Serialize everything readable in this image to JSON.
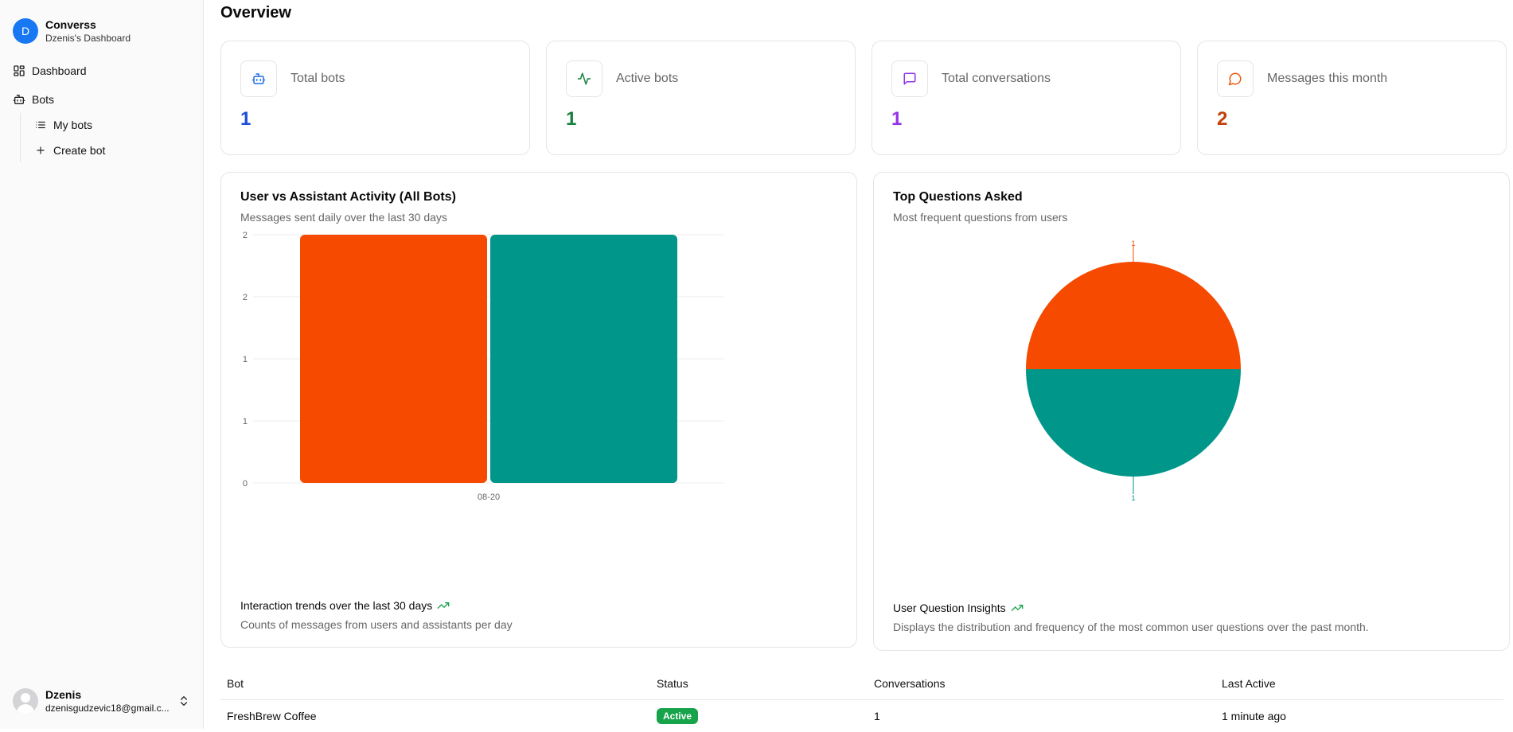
{
  "sidebar": {
    "brand_initial": "D",
    "brand_name": "Converss",
    "brand_sub": "Dzenis's Dashboard",
    "nav": {
      "dashboard": "Dashboard",
      "bots": "Bots",
      "my_bots": "My bots",
      "create_bot": "Create bot"
    },
    "user": {
      "name": "Dzenis",
      "email": "dzenisgudzevic18@gmail.c..."
    }
  },
  "page_title": "Overview",
  "stats": [
    {
      "label": "Total bots",
      "value": "1",
      "icon": "bot-icon",
      "color": "#1d4ed8"
    },
    {
      "label": "Active bots",
      "value": "1",
      "icon": "activity-icon",
      "color": "#15803d"
    },
    {
      "label": "Total conversations",
      "value": "1",
      "icon": "message-square-icon",
      "color": "#9333ea"
    },
    {
      "label": "Messages this month",
      "value": "2",
      "icon": "message-circle-icon",
      "color": "#c2410c"
    }
  ],
  "activity_card": {
    "title": "User vs Assistant Activity (All Bots)",
    "subtitle": "Messages sent daily over the last 30 days",
    "footer_title": "Interaction trends over the last 30 days",
    "footer_sub": "Counts of messages from users and assistants per day"
  },
  "questions_card": {
    "title": "Top Questions Asked",
    "subtitle": "Most frequent questions from users",
    "footer_title": "User Question Insights",
    "footer_sub": "Displays the distribution and frequency of the most common user questions over the past month."
  },
  "table": {
    "headers": [
      "Bot",
      "Status",
      "Conversations",
      "Last Active"
    ],
    "rows": [
      {
        "bot": "FreshBrew Coffee",
        "status": "Active",
        "conversations": "1",
        "last_active": "1 minute ago"
      }
    ]
  },
  "chart_data": [
    {
      "type": "bar",
      "categories": [
        "08-20"
      ],
      "series": [
        {
          "values": [
            2
          ],
          "color": "#f54a00"
        },
        {
          "values": [
            2
          ],
          "color": "#009689"
        }
      ],
      "yticks": [
        "0",
        "1",
        "1",
        "2",
        "2"
      ],
      "ylim": [
        0,
        2
      ],
      "grid": true
    },
    {
      "type": "pie",
      "slices": [
        {
          "value": 1,
          "label": "1",
          "color": "#f54a00"
        },
        {
          "value": 1,
          "label": "1",
          "color": "#009689"
        }
      ]
    }
  ]
}
